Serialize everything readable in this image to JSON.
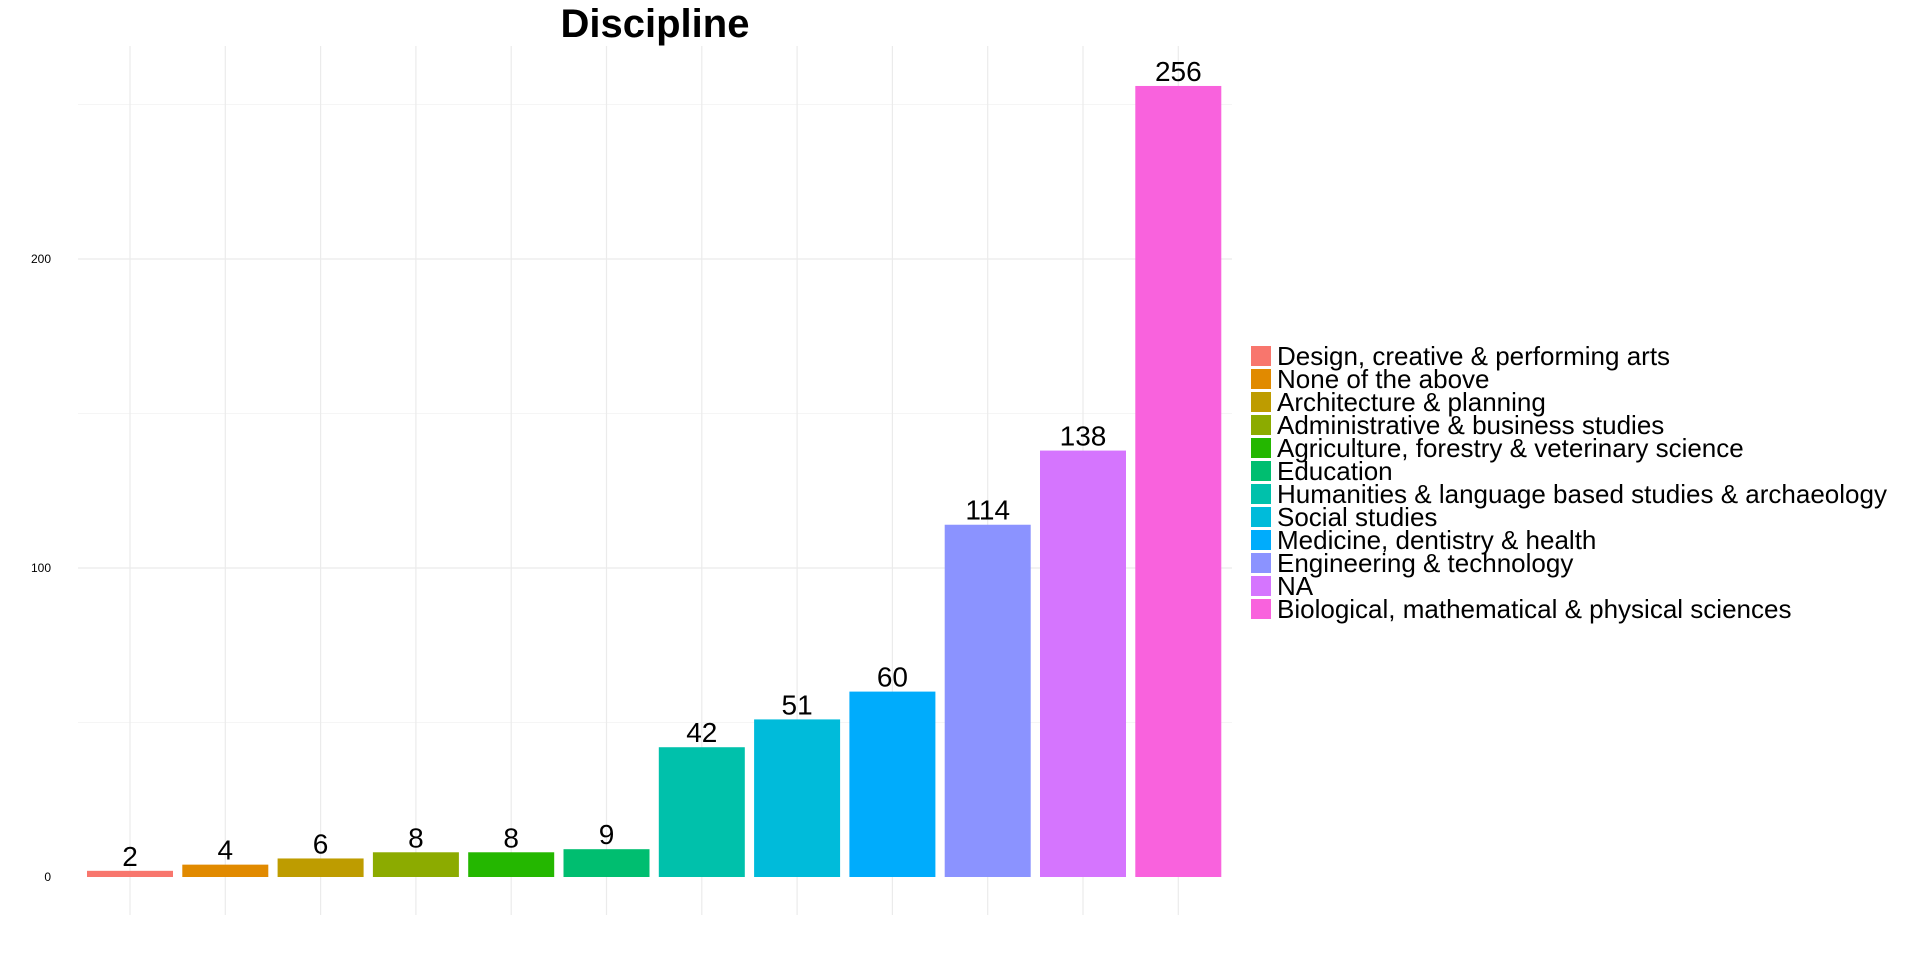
{
  "chart_data": {
    "type": "bar",
    "title": "Discipline",
    "xlabel": "",
    "ylabel": "",
    "ylim": [
      0,
      270
    ],
    "yticks": [
      0,
      100,
      200
    ],
    "grid": true,
    "legend_position": "right",
    "categories": [
      "Design, creative & performing arts",
      "None of the above",
      "Architecture & planning",
      "Administrative & business studies",
      "Agriculture, forestry & veterinary science",
      "Education",
      "Humanities & language based studies & archaeology",
      "Social studies",
      "Medicine, dentistry & health",
      "Engineering & technology",
      "NA",
      "Biological, mathematical & physical sciences"
    ],
    "values": [
      2,
      4,
      6,
      8,
      8,
      9,
      42,
      51,
      60,
      114,
      138,
      256
    ],
    "colors": [
      "#F8766D",
      "#E18A00",
      "#BE9C00",
      "#8CAB00",
      "#24B700",
      "#00BE70",
      "#00C1AB",
      "#00BBDA",
      "#00ACFC",
      "#8B93FF",
      "#D575FE",
      "#F962DD"
    ]
  }
}
